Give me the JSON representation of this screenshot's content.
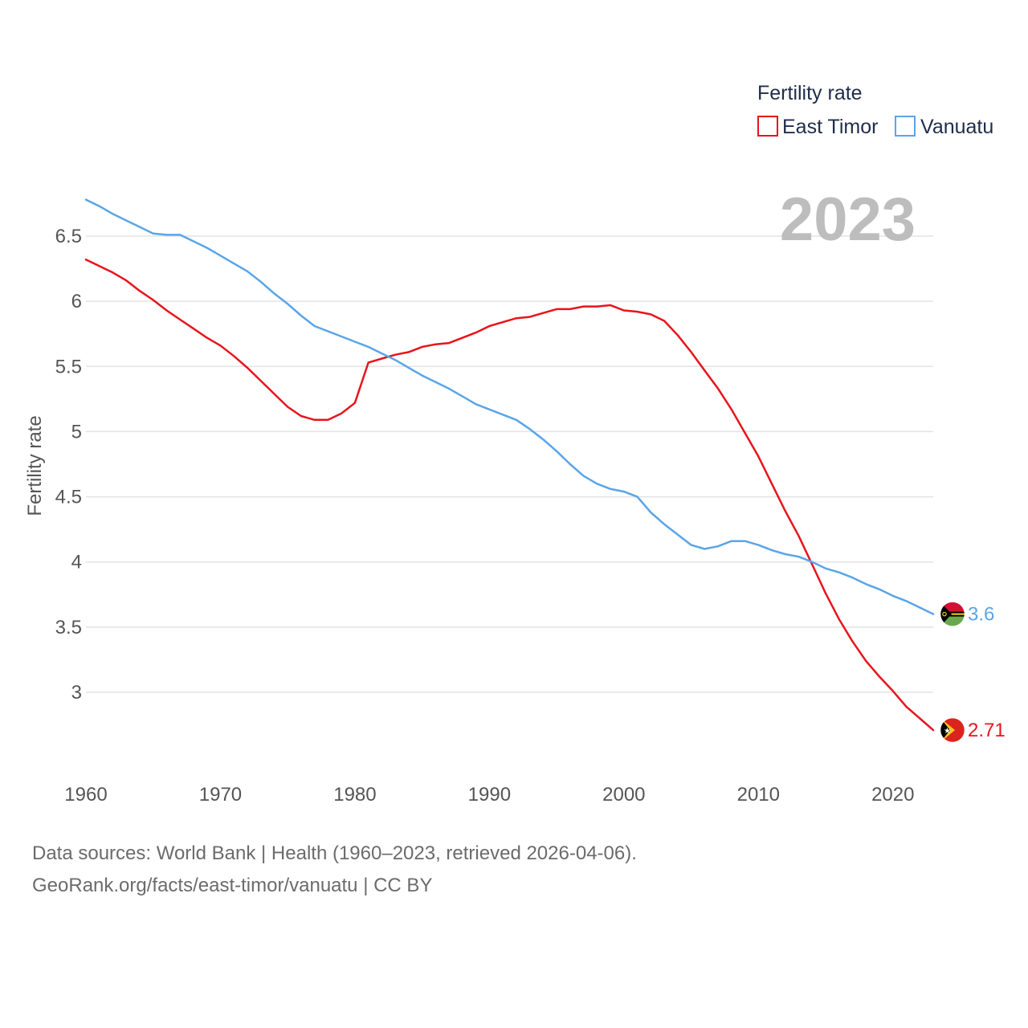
{
  "chart_data": {
    "type": "line",
    "legend_title": "Fertility rate",
    "ylabel": "Fertility rate",
    "xlabel": "",
    "current_year_label": "2023",
    "xlim": [
      1960,
      2023
    ],
    "ylim": [
      2.5,
      6.8
    ],
    "x_ticks": [
      1960,
      1970,
      1980,
      1990,
      2000,
      2010,
      2020
    ],
    "y_ticks": [
      {
        "value": 3,
        "label": "3"
      },
      {
        "value": 3.5,
        "label": "3.5"
      },
      {
        "value": 4,
        "label": "4"
      },
      {
        "value": 4.5,
        "label": "4.5"
      },
      {
        "value": 5,
        "label": "5"
      },
      {
        "value": 5.5,
        "label": "5.5"
      },
      {
        "value": 6,
        "label": "6"
      },
      {
        "value": 6.5,
        "label": "6.5"
      }
    ],
    "grid": true,
    "legend_position": "top-right",
    "x": [
      1960,
      1961,
      1962,
      1963,
      1964,
      1965,
      1966,
      1967,
      1968,
      1969,
      1970,
      1971,
      1972,
      1973,
      1974,
      1975,
      1976,
      1977,
      1978,
      1979,
      1980,
      1981,
      1982,
      1983,
      1984,
      1985,
      1986,
      1987,
      1988,
      1989,
      1990,
      1991,
      1992,
      1993,
      1994,
      1995,
      1996,
      1997,
      1998,
      1999,
      2000,
      2001,
      2002,
      2003,
      2004,
      2005,
      2006,
      2007,
      2008,
      2009,
      2010,
      2011,
      2012,
      2013,
      2014,
      2015,
      2016,
      2017,
      2018,
      2019,
      2020,
      2021,
      2022,
      2023
    ],
    "series": [
      {
        "name": "East Timor",
        "color": "#e8141c",
        "end_label": "2.71",
        "flag": "east-timor",
        "values": [
          6.32,
          6.27,
          6.22,
          6.16,
          6.08,
          6.01,
          5.93,
          5.86,
          5.79,
          5.72,
          5.66,
          5.58,
          5.49,
          5.39,
          5.29,
          5.19,
          5.12,
          5.09,
          5.09,
          5.14,
          5.22,
          5.53,
          5.56,
          5.59,
          5.61,
          5.65,
          5.67,
          5.68,
          5.72,
          5.76,
          5.81,
          5.84,
          5.87,
          5.88,
          5.91,
          5.94,
          5.94,
          5.96,
          5.96,
          5.97,
          5.93,
          5.92,
          5.9,
          5.85,
          5.74,
          5.61,
          5.47,
          5.33,
          5.17,
          4.99,
          4.81,
          4.6,
          4.39,
          4.2,
          3.98,
          3.76,
          3.56,
          3.39,
          3.24,
          3.12,
          3.01,
          2.89,
          2.8,
          2.71
        ]
      },
      {
        "name": "Vanuatu",
        "color": "#5aa5e8",
        "end_label": "3.6",
        "flag": "vanuatu",
        "values": [
          6.78,
          6.73,
          6.67,
          6.62,
          6.57,
          6.52,
          6.51,
          6.51,
          6.46,
          6.41,
          6.35,
          6.29,
          6.23,
          6.15,
          6.06,
          5.98,
          5.89,
          5.81,
          5.77,
          5.73,
          5.69,
          5.65,
          5.6,
          5.55,
          5.49,
          5.43,
          5.38,
          5.33,
          5.27,
          5.21,
          5.17,
          5.13,
          5.09,
          5.02,
          4.94,
          4.85,
          4.75,
          4.66,
          4.6,
          4.56,
          4.54,
          4.5,
          4.38,
          4.29,
          4.21,
          4.13,
          4.1,
          4.12,
          4.16,
          4.16,
          4.13,
          4.09,
          4.06,
          4.04,
          4.0,
          3.95,
          3.92,
          3.88,
          3.83,
          3.79,
          3.74,
          3.7,
          3.65,
          3.6
        ]
      }
    ]
  },
  "footer": {
    "line1": "Data sources: World Bank | Health (1960–2023, retrieved 2026-04-06).",
    "line2": "GeoRank.org/facts/east-timor/vanuatu | CC BY"
  }
}
